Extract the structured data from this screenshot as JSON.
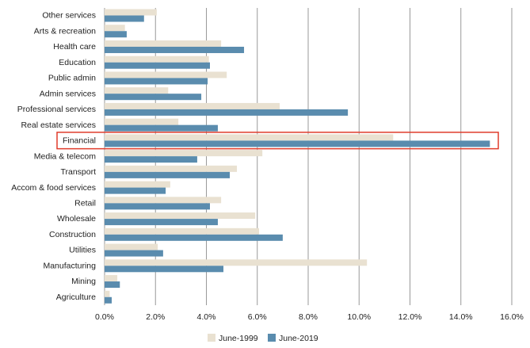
{
  "chart_data": {
    "type": "hbar",
    "categories": [
      "Other services",
      "Arts & recreation",
      "Health care",
      "Education",
      "Public admin",
      "Admin services",
      "Professional services",
      "Real estate services",
      "Financial",
      "Media & telecom",
      "Transport",
      "Accom & food services",
      "Retail",
      "Wholesale",
      "Construction",
      "Utilities",
      "Manufacturing",
      "Mining",
      "Agriculture"
    ],
    "series": [
      {
        "name": "June-1999",
        "color": "#e9e1d1",
        "values": [
          2.05,
          0.8,
          4.58,
          4.1,
          4.8,
          2.5,
          6.88,
          2.9,
          11.34,
          6.2,
          5.2,
          2.58,
          4.58,
          5.92,
          6.07,
          2.09,
          10.31,
          0.5,
          0.2
        ]
      },
      {
        "name": "June-2019",
        "color": "#5a8cae",
        "values": [
          1.55,
          0.87,
          5.48,
          4.14,
          4.05,
          3.8,
          9.56,
          4.45,
          15.14,
          3.64,
          4.92,
          2.4,
          4.14,
          4.45,
          7.0,
          2.3,
          4.67,
          0.6,
          0.28
        ]
      }
    ],
    "xlim": [
      0,
      16
    ],
    "xticks": [
      {
        "value": 0,
        "label": "0.0%"
      },
      {
        "value": 2,
        "label": "2.0%"
      },
      {
        "value": 4,
        "label": "4.0%"
      },
      {
        "value": 6,
        "label": "6.0%"
      },
      {
        "value": 8,
        "label": "8.0%"
      },
      {
        "value": 10,
        "label": "10.0%"
      },
      {
        "value": 12,
        "label": "12.0%"
      },
      {
        "value": 14,
        "label": "14.0%"
      },
      {
        "value": 16,
        "label": "16.0%"
      }
    ],
    "grid": true
  }
}
